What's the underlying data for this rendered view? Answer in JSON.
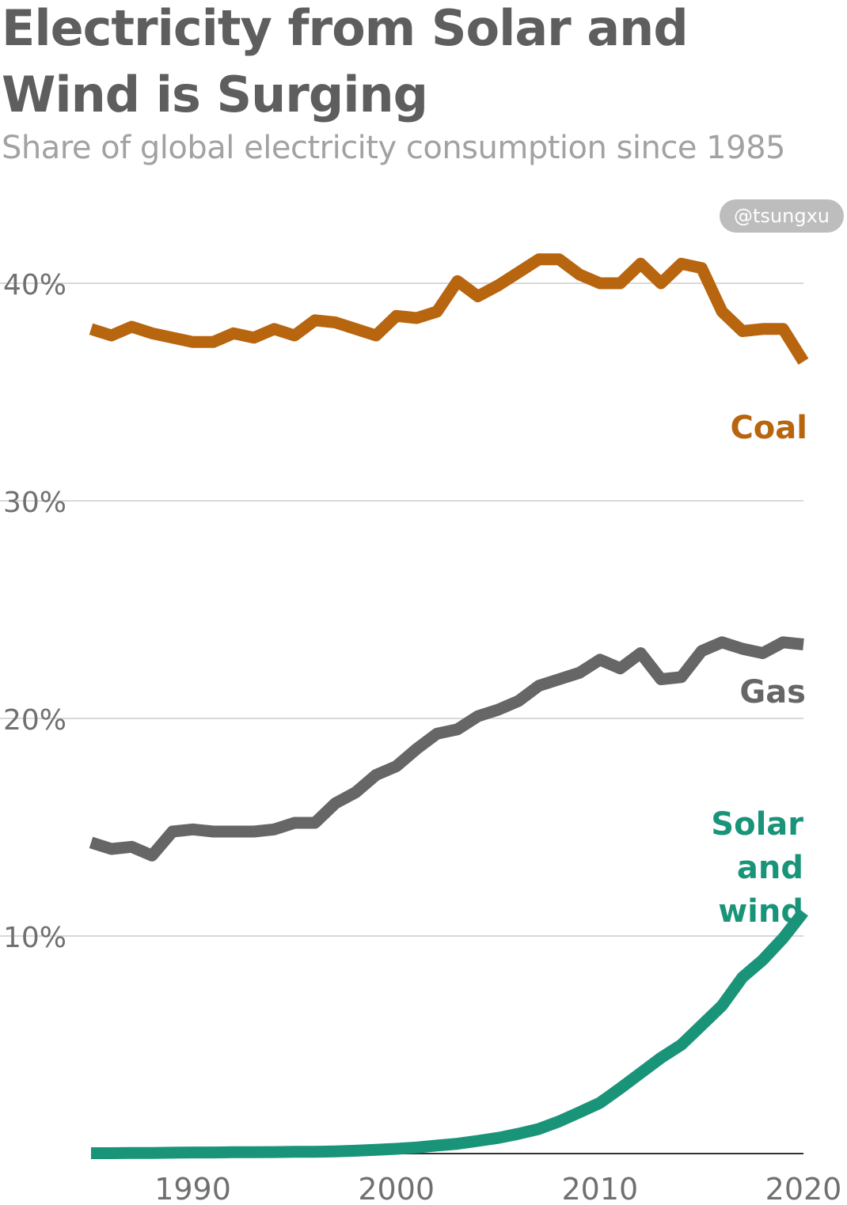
{
  "title": "Electricity from Solar and Wind is Surging",
  "subtitle": "Share of global electricity consumption since 1985",
  "credit": "@tsungxu",
  "colors": {
    "coal": "#b8650f",
    "gas": "#666666",
    "solar_wind": "#1a9479",
    "grid": "#d9d9d9",
    "axis": "#333333"
  },
  "chart_data": {
    "type": "line",
    "title": "Electricity from Solar and Wind is Surging",
    "subtitle": "Share of global electricity consumption since 1985",
    "xlabel": "",
    "ylabel": "",
    "xlim": [
      1985,
      2020
    ],
    "ylim": [
      0,
      42
    ],
    "yticks": [
      10,
      20,
      30,
      40
    ],
    "ytick_labels": [
      "10%",
      "20%",
      "30%",
      "40%"
    ],
    "xticks": [
      1990,
      2000,
      2010,
      2020
    ],
    "xtick_labels": [
      "1990",
      "2000",
      "2010",
      "2020"
    ],
    "grid": true,
    "legend": "direct labels at right",
    "x": [
      1985,
      1986,
      1987,
      1988,
      1989,
      1990,
      1991,
      1992,
      1993,
      1994,
      1995,
      1996,
      1997,
      1998,
      1999,
      2000,
      2001,
      2002,
      2003,
      2004,
      2005,
      2006,
      2007,
      2008,
      2009,
      2010,
      2011,
      2012,
      2013,
      2014,
      2015,
      2016,
      2017,
      2018,
      2019,
      2020
    ],
    "series": [
      {
        "name": "Coal",
        "label_lines": [
          "Coal"
        ],
        "color": "#b8650f",
        "values": [
          37.9,
          37.6,
          38.0,
          37.7,
          37.5,
          37.3,
          37.3,
          37.7,
          37.5,
          37.9,
          37.6,
          38.3,
          38.2,
          37.9,
          37.6,
          38.5,
          38.4,
          38.7,
          40.1,
          39.4,
          39.9,
          40.5,
          41.1,
          41.1,
          40.4,
          40.0,
          40.0,
          40.9,
          40.0,
          40.9,
          40.7,
          38.7,
          37.8,
          37.9,
          37.9,
          36.4
        ]
      },
      {
        "name": "Gas",
        "label_lines": [
          "Gas"
        ],
        "color": "#666666",
        "values": [
          14.3,
          14.0,
          14.1,
          13.7,
          14.8,
          14.9,
          14.8,
          14.8,
          14.8,
          14.9,
          15.2,
          15.2,
          16.1,
          16.6,
          17.4,
          17.8,
          18.6,
          19.3,
          19.5,
          20.1,
          20.4,
          20.8,
          21.5,
          21.8,
          22.1,
          22.7,
          22.3,
          23.0,
          21.8,
          21.9,
          23.1,
          23.5,
          23.2,
          23.0,
          23.5,
          23.4
        ]
      },
      {
        "name": "Solar and wind",
        "label_lines": [
          "Solar",
          "and",
          "wind"
        ],
        "color": "#1a9479",
        "values": [
          0.02,
          0.02,
          0.03,
          0.03,
          0.04,
          0.05,
          0.05,
          0.06,
          0.06,
          0.07,
          0.08,
          0.08,
          0.1,
          0.13,
          0.17,
          0.22,
          0.28,
          0.37,
          0.45,
          0.58,
          0.72,
          0.91,
          1.13,
          1.48,
          1.9,
          2.33,
          3.0,
          3.7,
          4.4,
          5.0,
          5.9,
          6.8,
          8.1,
          8.9,
          9.9,
          11.1
        ]
      }
    ]
  }
}
